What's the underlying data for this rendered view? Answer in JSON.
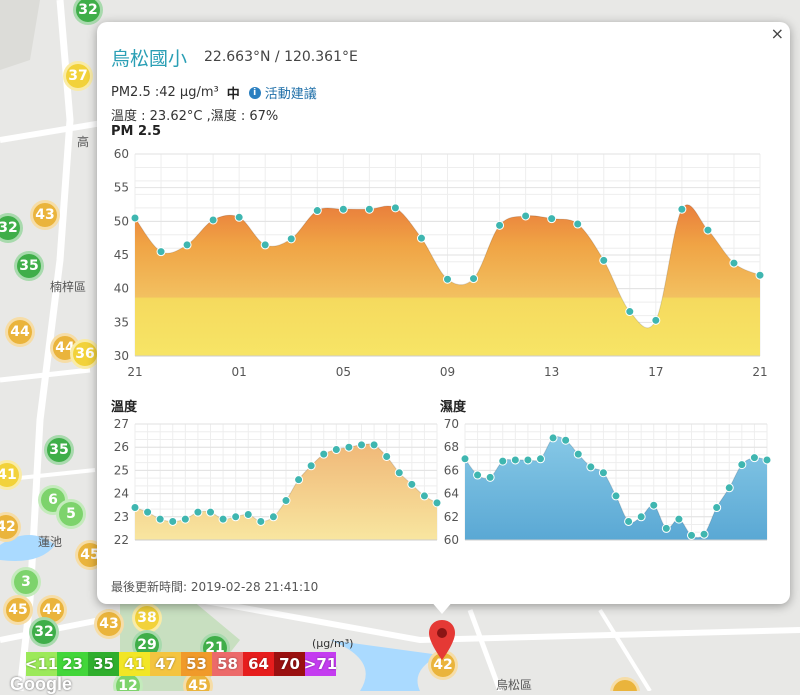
{
  "station": {
    "name": "烏松國小",
    "coords": "22.663°N / 120.361°E",
    "pm_label": "PM2.5 :42 μg/m³",
    "pm_level": "中",
    "advice_label": "活動建議",
    "weather_label": "溫度 : 23.62°C ,濕度 : 67%",
    "updated_label": "最後更新時間: 2019-02-28 21:41:10"
  },
  "close_label": "×",
  "map": {
    "labels": [
      {
        "text": "楠梓區",
        "x": 50,
        "y": 290
      },
      {
        "text": "高",
        "x": 77,
        "y": 145
      },
      {
        "text": "蓮池",
        "x": 38,
        "y": 545
      },
      {
        "text": "烏松區",
        "x": 496,
        "y": 688
      }
    ],
    "markers": [
      {
        "value": "32",
        "color": "#3fae49",
        "x": 88,
        "y": 10
      },
      {
        "value": "37",
        "color": "#f2d23a",
        "x": 78,
        "y": 76
      },
      {
        "value": "43",
        "color": "#eab43c",
        "x": 45,
        "y": 215
      },
      {
        "value": "32",
        "color": "#3fae49",
        "x": 8,
        "y": 228
      },
      {
        "value": "35",
        "color": "#3fae49",
        "x": 29,
        "y": 266
      },
      {
        "value": "44",
        "color": "#eab43c",
        "x": 20,
        "y": 332
      },
      {
        "value": "44",
        "color": "#eab43c",
        "x": 65,
        "y": 348
      },
      {
        "value": "36",
        "color": "#f2d23a",
        "x": 85,
        "y": 354
      },
      {
        "value": "35",
        "color": "#3fae49",
        "x": 59,
        "y": 450
      },
      {
        "value": "41",
        "color": "#f2d23a",
        "x": 7,
        "y": 475
      },
      {
        "value": "6",
        "color": "#7dd36c",
        "x": 53,
        "y": 500
      },
      {
        "value": "5",
        "color": "#7dd36c",
        "x": 71,
        "y": 514
      },
      {
        "value": "42",
        "color": "#eab43c",
        "x": 6,
        "y": 527
      },
      {
        "value": "45",
        "color": "#eab43c",
        "x": 90,
        "y": 555
      },
      {
        "value": "3",
        "color": "#7dd36c",
        "x": 26,
        "y": 582
      },
      {
        "value": "45",
        "color": "#eab43c",
        "x": 18,
        "y": 610
      },
      {
        "value": "44",
        "color": "#eab43c",
        "x": 52,
        "y": 610
      },
      {
        "value": "38",
        "color": "#f2d23a",
        "x": 147,
        "y": 618
      },
      {
        "value": "43",
        "color": "#eab43c",
        "x": 109,
        "y": 624
      },
      {
        "value": "32",
        "color": "#3fae49",
        "x": 44,
        "y": 632
      },
      {
        "value": "29",
        "color": "#3fae49",
        "x": 147,
        "y": 645
      },
      {
        "value": "21",
        "color": "#3fae49",
        "x": 215,
        "y": 648
      },
      {
        "value": "42",
        "color": "#eab43c",
        "x": 443,
        "y": 665
      },
      {
        "value": "12",
        "color": "#7dd36c",
        "x": 128,
        "y": 686
      },
      {
        "value": "45",
        "color": "#eab43c",
        "x": 198,
        "y": 686
      },
      {
        "value": "",
        "color": "#eab43c",
        "x": 625,
        "y": 692
      }
    ]
  },
  "legend": {
    "unit": "(μg/m³)",
    "items": [
      {
        "label": "<11",
        "color": "#9ce95a"
      },
      {
        "label": "23",
        "color": "#42d63a"
      },
      {
        "label": "35",
        "color": "#2fae2d"
      },
      {
        "label": "41",
        "color": "#f2e626"
      },
      {
        "label": "47",
        "color": "#f4c440"
      },
      {
        "label": "53",
        "color": "#f09a2a"
      },
      {
        "label": "58",
        "color": "#ec6a6a"
      },
      {
        "label": "64",
        "color": "#e61d1d"
      },
      {
        "label": "70",
        "color": "#9a1010"
      },
      {
        "label": ">71",
        "color": "#c43cf0"
      }
    ]
  },
  "google_label": "Google",
  "chart_data": [
    {
      "type": "area",
      "title": "PM 2.5",
      "x": [
        "21",
        "22",
        "23",
        "00",
        "01",
        "02",
        "03",
        "04",
        "05",
        "06",
        "07",
        "08",
        "09",
        "10",
        "11",
        "12",
        "13",
        "14",
        "15",
        "16",
        "17",
        "18",
        "19",
        "20",
        "21"
      ],
      "xticks": [
        "21",
        "01",
        "05",
        "09",
        "13",
        "17",
        "21"
      ],
      "values": [
        50.5,
        45.5,
        46.5,
        50.2,
        50.6,
        46.5,
        47.4,
        51.6,
        51.8,
        51.8,
        52,
        47.5,
        41.4,
        41.5,
        49.4,
        50.8,
        50.4,
        49.6,
        44.2,
        36.6,
        35.3,
        51.8,
        48.7,
        43.8,
        42
      ],
      "ylim": [
        30,
        60
      ],
      "yticks": [
        30,
        35,
        40,
        45,
        50,
        55,
        60
      ],
      "grid": true
    },
    {
      "type": "area",
      "title": "溫度",
      "values": [
        23.4,
        23.2,
        22.9,
        22.8,
        22.9,
        23.2,
        23.2,
        22.9,
        23.0,
        23.1,
        22.8,
        23.0,
        23.7,
        24.6,
        25.2,
        25.7,
        25.9,
        26.0,
        26.1,
        26.1,
        25.6,
        24.9,
        24.4,
        23.9,
        23.6
      ],
      "ylim": [
        22,
        27
      ],
      "yticks": [
        22,
        23,
        24,
        25,
        26,
        27
      ],
      "grid": true
    },
    {
      "type": "area",
      "title": "濕度",
      "values": [
        67.0,
        65.6,
        65.4,
        66.8,
        66.9,
        66.9,
        67.0,
        68.8,
        68.6,
        67.4,
        66.3,
        65.8,
        63.8,
        61.6,
        62.0,
        63.0,
        61.0,
        61.8,
        60.4,
        60.5,
        62.8,
        64.5,
        66.5,
        67.1,
        66.9
      ],
      "ylim": [
        60,
        70
      ],
      "yticks": [
        60,
        62,
        64,
        66,
        68,
        70
      ],
      "grid": true
    }
  ]
}
